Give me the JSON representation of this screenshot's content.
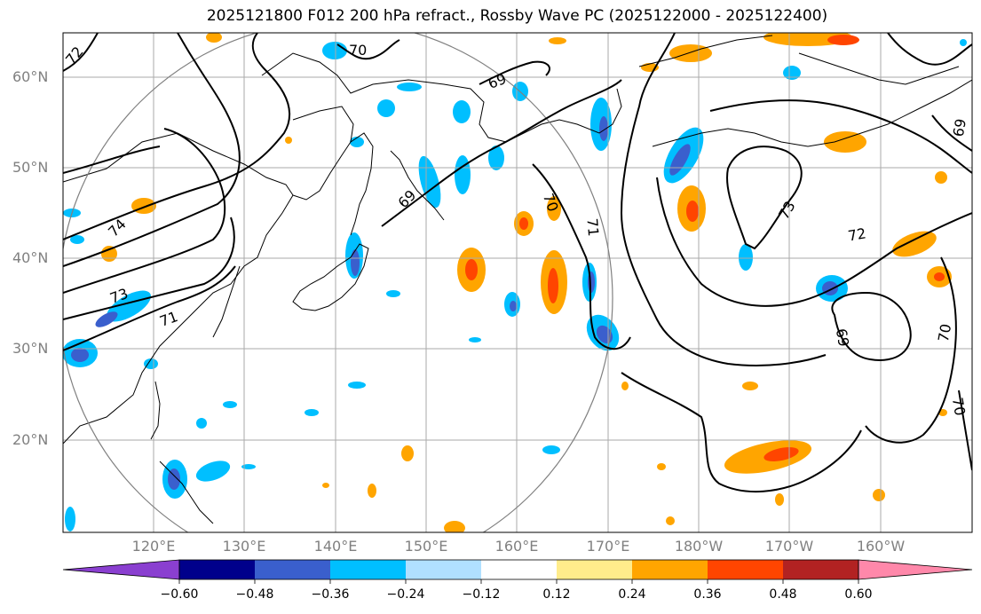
{
  "title": "2025121800 F012 200 hPa refract., Rossby Wave PC (2025122000 - 2025122400)",
  "lat_labels": [
    "60°N",
    "50°N",
    "40°N",
    "30°N",
    "20°N"
  ],
  "lon_labels": [
    "120°E",
    "130°E",
    "140°E",
    "150°E",
    "160°E",
    "170°E",
    "180°W",
    "170°W",
    "160°W"
  ],
  "contour_labels": [
    "72",
    "70",
    "69",
    "69",
    "70",
    "71",
    "74",
    "73",
    "71",
    "73",
    "72",
    "69",
    "70",
    "69",
    "70"
  ],
  "colorbar": {
    "ticks": [
      "−0.60",
      "−0.48",
      "−0.36",
      "−0.24",
      "−0.12",
      "0.12",
      "0.24",
      "0.36",
      "0.48",
      "0.60"
    ],
    "colors": [
      "#8a3fd0",
      "#00008b",
      "#3a5fcd",
      "#00bfff",
      "#b0e0ff",
      "#ffffff",
      "#ffec8b",
      "#ffa500",
      "#ff4500",
      "#b22222",
      "#ff88aa"
    ]
  },
  "colors": {
    "negative_light": "#b0e0ff",
    "negative_mid": "#00bfff",
    "negative_strong": "#3a5fcd",
    "positive_light": "#ffec8b",
    "positive_mid": "#ffa500",
    "positive_strong": "#ff4500",
    "grid": "#aaaaaa",
    "circle": "#808080"
  }
}
